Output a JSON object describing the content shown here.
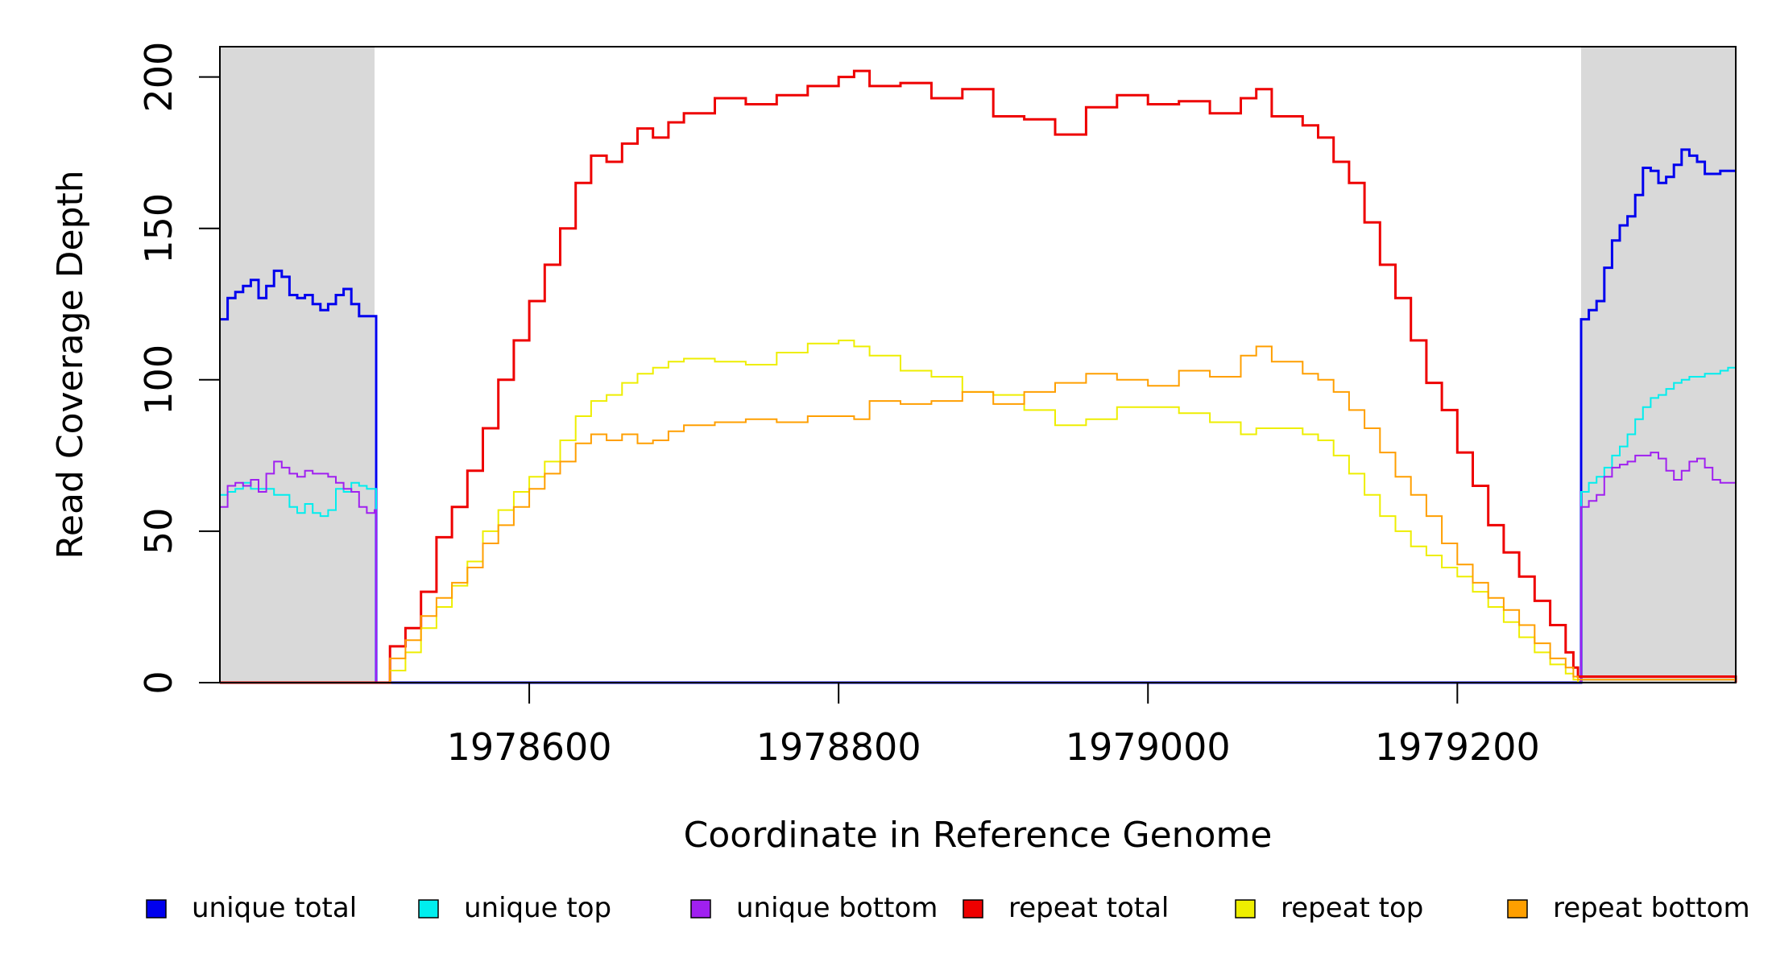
{
  "chart_data": {
    "type": "line",
    "title": "",
    "xlabel": "Coordinate in Reference Genome",
    "ylabel": "Read Coverage Depth",
    "xlim": [
      1978400,
      1979380
    ],
    "ylim": [
      0,
      210
    ],
    "x_ticks": [
      1978600,
      1978800,
      1979000,
      1979200
    ],
    "y_ticks": [
      0,
      50,
      100,
      150,
      200
    ],
    "grid": false,
    "legend_position": "bottom",
    "shaded_regions": [
      {
        "x_start": 1978400,
        "x_end": 1978500,
        "color": "#d9d9d9"
      },
      {
        "x_start": 1979280,
        "x_end": 1979380,
        "color": "#d9d9d9"
      }
    ],
    "series": [
      {
        "name": "unique total",
        "color": "#0000ee",
        "width": 3,
        "x": [
          1978400,
          1978405,
          1978410,
          1978415,
          1978420,
          1978425,
          1978430,
          1978435,
          1978440,
          1978445,
          1978450,
          1978455,
          1978460,
          1978465,
          1978470,
          1978475,
          1978480,
          1978485,
          1978490,
          1978495,
          1978500,
          1978501,
          1978560,
          1979000,
          1979278,
          1979280,
          1979285,
          1979290,
          1979295,
          1979300,
          1979305,
          1979310,
          1979315,
          1979320,
          1979325,
          1979330,
          1979335,
          1979340,
          1979345,
          1979350,
          1979355,
          1979360,
          1979365,
          1979370,
          1979375,
          1979380
        ],
        "y": [
          120,
          127,
          129,
          131,
          133,
          127,
          131,
          136,
          134,
          128,
          127,
          128,
          125,
          123,
          125,
          128,
          130,
          125,
          121,
          121,
          121,
          0,
          0,
          0,
          0,
          120,
          123,
          126,
          137,
          146,
          151,
          154,
          161,
          170,
          169,
          165,
          167,
          171,
          176,
          174,
          172,
          168,
          168,
          169,
          169,
          169
        ]
      },
      {
        "name": "unique top",
        "color": "#00eeee",
        "width": 2,
        "x": [
          1978400,
          1978405,
          1978410,
          1978415,
          1978420,
          1978425,
          1978430,
          1978435,
          1978440,
          1978445,
          1978450,
          1978455,
          1978460,
          1978465,
          1978470,
          1978475,
          1978480,
          1978485,
          1978490,
          1978495,
          1978500,
          1978501,
          1978560,
          1979000,
          1979278,
          1979280,
          1979285,
          1979290,
          1979295,
          1979300,
          1979305,
          1979310,
          1979315,
          1979320,
          1979325,
          1979330,
          1979335,
          1979340,
          1979345,
          1979350,
          1979355,
          1979360,
          1979365,
          1979370,
          1979375,
          1979380
        ],
        "y": [
          62,
          63,
          64,
          66,
          64,
          64,
          64,
          62,
          62,
          58,
          56,
          59,
          56,
          55,
          57,
          64,
          63,
          66,
          65,
          64,
          64,
          0,
          0,
          0,
          0,
          63,
          66,
          68,
          71,
          75,
          78,
          82,
          87,
          91,
          94,
          95,
          97,
          99,
          100,
          101,
          101,
          102,
          102,
          103,
          104,
          104
        ]
      },
      {
        "name": "unique bottom",
        "color": "#a020f0",
        "width": 2,
        "x": [
          1978400,
          1978405,
          1978410,
          1978415,
          1978420,
          1978425,
          1978430,
          1978435,
          1978440,
          1978445,
          1978450,
          1978455,
          1978460,
          1978465,
          1978470,
          1978475,
          1978480,
          1978485,
          1978490,
          1978495,
          1978500,
          1978501,
          1978560,
          1979000,
          1979278,
          1979280,
          1979285,
          1979290,
          1979295,
          1979300,
          1979305,
          1979310,
          1979315,
          1979320,
          1979325,
          1979330,
          1979335,
          1979340,
          1979345,
          1979350,
          1979355,
          1979360,
          1979365,
          1979370,
          1979375,
          1979380
        ],
        "y": [
          58,
          65,
          66,
          65,
          67,
          63,
          69,
          73,
          71,
          69,
          68,
          70,
          69,
          69,
          68,
          66,
          64,
          63,
          58,
          56,
          57,
          0,
          0,
          0,
          0,
          58,
          60,
          62,
          68,
          71,
          72,
          73,
          75,
          75,
          76,
          74,
          70,
          67,
          70,
          73,
          74,
          71,
          67,
          66,
          66,
          66
        ]
      },
      {
        "name": "repeat total",
        "color": "#ee0000",
        "width": 3,
        "x": [
          1978400,
          1978500,
          1978510,
          1978520,
          1978530,
          1978540,
          1978550,
          1978560,
          1978570,
          1978580,
          1978590,
          1978600,
          1978610,
          1978620,
          1978630,
          1978640,
          1978650,
          1978660,
          1978670,
          1978680,
          1978690,
          1978700,
          1978720,
          1978740,
          1978760,
          1978780,
          1978800,
          1978810,
          1978820,
          1978840,
          1978860,
          1978880,
          1978900,
          1978920,
          1978940,
          1978960,
          1978980,
          1979000,
          1979020,
          1979040,
          1979060,
          1979070,
          1979080,
          1979100,
          1979110,
          1979120,
          1979130,
          1979140,
          1979150,
          1979160,
          1979170,
          1979180,
          1979190,
          1979200,
          1979210,
          1979220,
          1979230,
          1979240,
          1979250,
          1979260,
          1979270,
          1979275,
          1979278,
          1979380
        ],
        "y": [
          0,
          0,
          12,
          18,
          30,
          48,
          58,
          70,
          84,
          100,
          113,
          126,
          138,
          150,
          165,
          174,
          172,
          178,
          183,
          180,
          185,
          188,
          193,
          191,
          194,
          197,
          200,
          202,
          197,
          198,
          193,
          196,
          187,
          186,
          181,
          190,
          194,
          191,
          192,
          188,
          193,
          196,
          187,
          184,
          180,
          172,
          165,
          152,
          138,
          127,
          113,
          99,
          90,
          76,
          65,
          52,
          43,
          35,
          27,
          19,
          10,
          5,
          2,
          0
        ]
      },
      {
        "name": "repeat top",
        "color": "#eeee00",
        "width": 2,
        "x": [
          1978400,
          1978500,
          1978510,
          1978520,
          1978530,
          1978540,
          1978550,
          1978560,
          1978570,
          1978580,
          1978590,
          1978600,
          1978610,
          1978620,
          1978630,
          1978640,
          1978650,
          1978660,
          1978670,
          1978680,
          1978690,
          1978700,
          1978720,
          1978740,
          1978760,
          1978780,
          1978800,
          1978810,
          1978820,
          1978840,
          1978860,
          1978880,
          1978900,
          1978920,
          1978940,
          1978960,
          1978980,
          1979000,
          1979020,
          1979040,
          1979060,
          1979070,
          1979080,
          1979100,
          1979110,
          1979120,
          1979130,
          1979140,
          1979150,
          1979160,
          1979170,
          1979180,
          1979190,
          1979200,
          1979210,
          1979220,
          1979230,
          1979240,
          1979250,
          1979260,
          1979270,
          1979275,
          1979278,
          1979380
        ],
        "y": [
          0,
          0,
          4,
          10,
          18,
          25,
          32,
          40,
          50,
          57,
          63,
          68,
          73,
          80,
          88,
          93,
          95,
          99,
          102,
          104,
          106,
          107,
          106,
          105,
          109,
          112,
          113,
          111,
          108,
          103,
          101,
          96,
          95,
          90,
          85,
          87,
          91,
          91,
          89,
          86,
          82,
          84,
          84,
          82,
          80,
          75,
          69,
          62,
          55,
          50,
          45,
          42,
          38,
          35,
          30,
          25,
          20,
          15,
          10,
          6,
          3,
          1,
          0,
          0
        ]
      },
      {
        "name": "repeat bottom",
        "color": "#ff9f00",
        "width": 2,
        "x": [
          1978400,
          1978500,
          1978510,
          1978520,
          1978530,
          1978540,
          1978550,
          1978560,
          1978570,
          1978580,
          1978590,
          1978600,
          1978610,
          1978620,
          1978630,
          1978640,
          1978650,
          1978660,
          1978670,
          1978680,
          1978690,
          1978700,
          1978720,
          1978740,
          1978760,
          1978780,
          1978800,
          1978810,
          1978820,
          1978840,
          1978860,
          1978880,
          1978900,
          1978920,
          1978940,
          1978960,
          1978980,
          1979000,
          1979020,
          1979040,
          1979060,
          1979070,
          1979080,
          1979100,
          1979110,
          1979120,
          1979130,
          1979140,
          1979150,
          1979160,
          1979170,
          1979180,
          1979190,
          1979200,
          1979210,
          1979220,
          1979230,
          1979240,
          1979250,
          1979260,
          1979270,
          1979275,
          1979278,
          1979380
        ],
        "y": [
          0,
          0,
          8,
          14,
          22,
          28,
          33,
          38,
          46,
          52,
          58,
          64,
          69,
          73,
          79,
          82,
          80,
          82,
          79,
          80,
          83,
          85,
          86,
          87,
          86,
          88,
          88,
          87,
          93,
          92,
          93,
          96,
          92,
          96,
          99,
          102,
          100,
          98,
          103,
          101,
          108,
          111,
          106,
          102,
          100,
          96,
          90,
          84,
          76,
          68,
          62,
          55,
          46,
          39,
          33,
          28,
          24,
          19,
          13,
          8,
          5,
          2,
          1,
          0
        ]
      }
    ]
  }
}
